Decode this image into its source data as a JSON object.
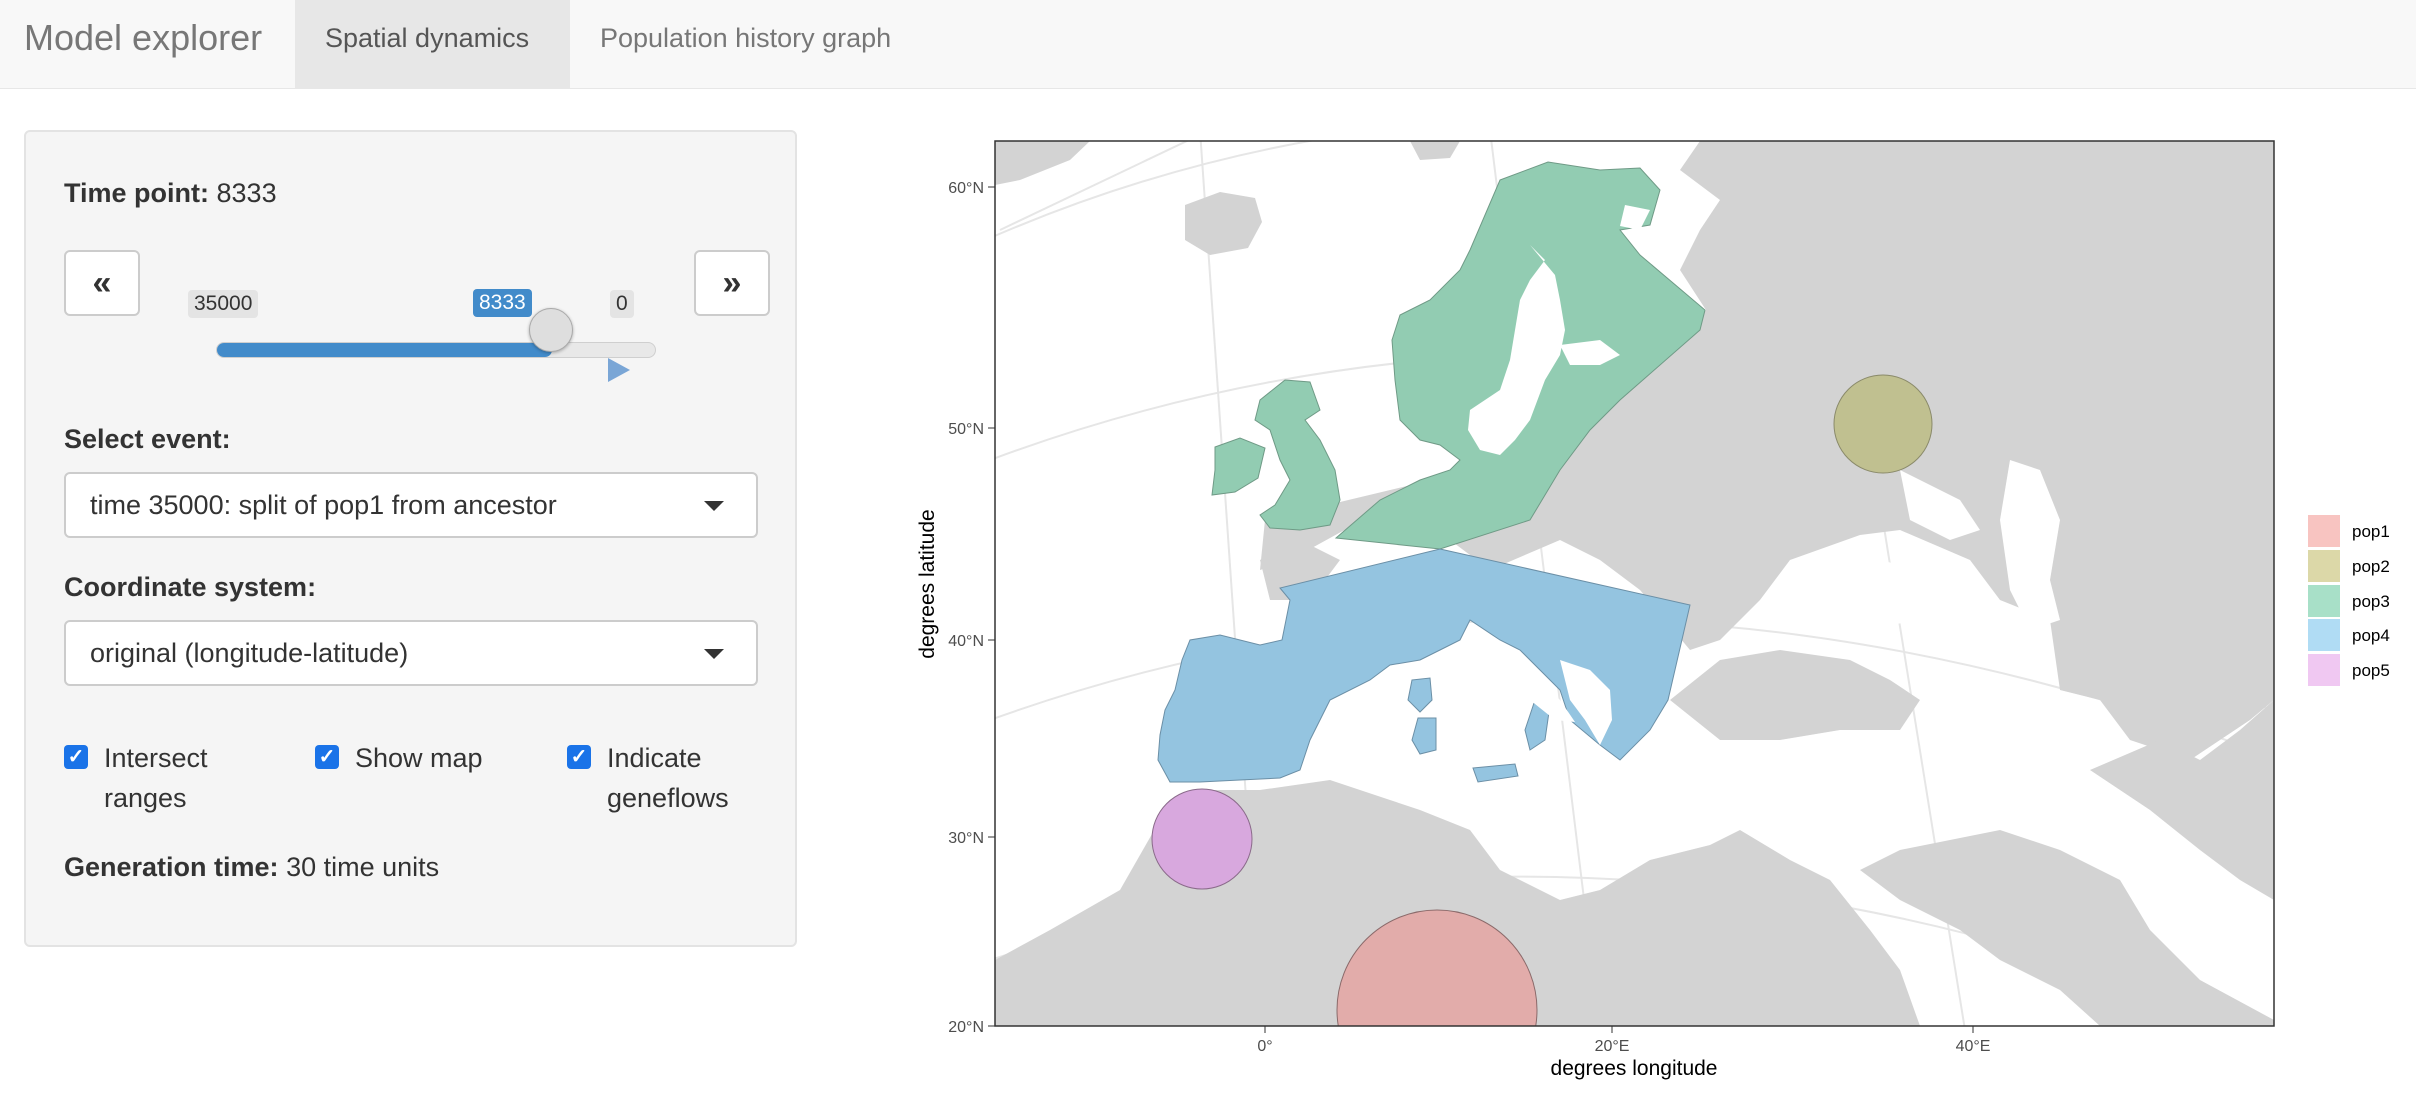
{
  "navbar": {
    "brand": "Model explorer",
    "tabs": [
      {
        "label": "Spatial dynamics",
        "active": true
      },
      {
        "label": "Population history graph",
        "active": false
      }
    ]
  },
  "sidebar": {
    "time_point_label": "Time point:",
    "time_point_value": "8333",
    "prev_button": "«",
    "next_button": "»",
    "slider": {
      "min_label": "35000",
      "max_label": "0",
      "current_label": "8333",
      "position_fraction": 0.762
    },
    "event_label": "Select event:",
    "event_value": "time 35000: split of pop1 from ancestor",
    "coord_label": "Coordinate system:",
    "coord_value": "original (longitude-latitude)",
    "checkboxes": [
      {
        "line1": "Intersect",
        "line2": "ranges",
        "checked": true
      },
      {
        "line1": "Show map",
        "line2": "",
        "checked": true
      },
      {
        "line1": "Indicate",
        "line2": "geneflows",
        "checked": true
      }
    ],
    "generation_label": "Generation time:",
    "generation_value": "30 time units"
  },
  "map": {
    "xlabel": "degrees longitude",
    "ylabel": "degrees latitude",
    "y_ticks": [
      "60°N",
      "50°N",
      "40°N",
      "30°N",
      "20°N"
    ],
    "x_ticks": [
      "0°",
      "20°E",
      "40°E"
    ],
    "land_color": "#d3d3d3",
    "sea_color": "#ffffff",
    "legend": [
      {
        "name": "pop1",
        "color": "#f8c4c1"
      },
      {
        "name": "pop2",
        "color": "#dcd8a8"
      },
      {
        "name": "pop3",
        "color": "#a8e0c8"
      },
      {
        "name": "pop4",
        "color": "#b0dcf4"
      },
      {
        "name": "pop5",
        "color": "#f0c8f2"
      }
    ],
    "region_fill": {
      "pop1": "#e2acaa",
      "pop2": "#c0c090",
      "pop3": "#92ccb2",
      "pop4": "#94c4e0",
      "pop5": "#d8a8de"
    }
  }
}
